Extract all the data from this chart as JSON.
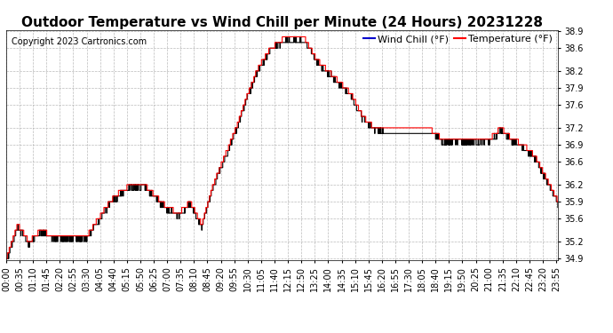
{
  "title": "Outdoor Temperature vs Wind Chill per Minute (24 Hours) 20231228",
  "copyright": "Copyright 2023 Cartronics.com",
  "legend_wind": "Wind Chill (°F)",
  "legend_temp": "Temperature (°F)",
  "wind_chill_color": "#000000",
  "temp_color": "#ff0000",
  "bg_color": "#ffffff",
  "grid_color": "#aaaaaa",
  "ylim_min": 34.9,
  "ylim_max": 38.9,
  "yticks": [
    34.9,
    35.2,
    35.6,
    35.9,
    36.2,
    36.6,
    36.9,
    37.2,
    37.6,
    37.9,
    38.2,
    38.6,
    38.9
  ],
  "title_fontsize": 11,
  "copyright_fontsize": 7,
  "legend_fontsize": 8,
  "tick_fontsize": 7,
  "wind_legend_color": "#0000cc",
  "temp_legend_color": "#ff0000"
}
